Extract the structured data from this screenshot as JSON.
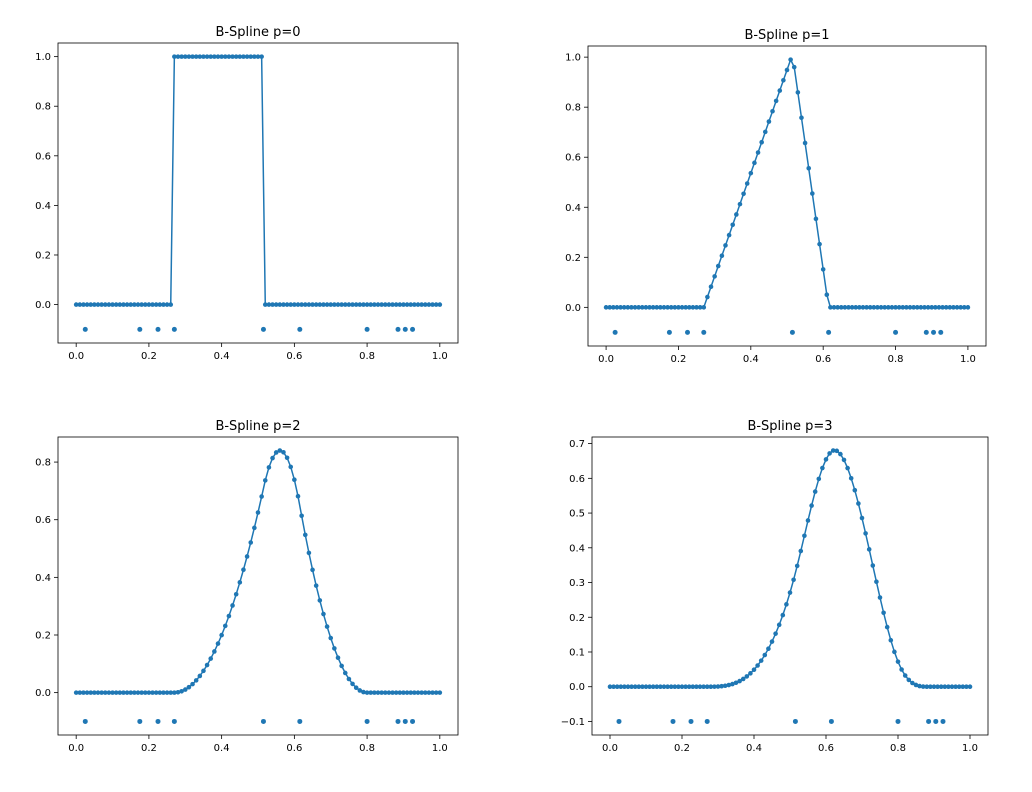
{
  "colors": {
    "series": "#1f77b4",
    "axes": "#000000",
    "background": "#ffffff"
  },
  "knots": [
    0.025,
    0.175,
    0.225,
    0.27,
    0.515,
    0.615,
    0.8,
    0.885,
    0.905,
    0.925
  ],
  "chart_data": [
    {
      "type": "line",
      "title": "B-Spline p=0",
      "degree": 0,
      "xlabel": "",
      "ylabel": "",
      "xlim": [
        0,
        1
      ],
      "ylim": [
        -0.1,
        1.0
      ],
      "xticks": [
        0.0,
        0.2,
        0.4,
        0.6,
        0.8,
        1.0
      ],
      "xtick_labels": [
        "0.0",
        "0.2",
        "0.4",
        "0.6",
        "0.8",
        "1.0"
      ],
      "yticks": [
        0.0,
        0.2,
        0.4,
        0.6,
        0.8,
        1.0
      ],
      "ytick_labels": [
        "0.0",
        "0.2",
        "0.4",
        "0.6",
        "0.8",
        "1.0"
      ],
      "knot_y": -0.1,
      "grid": false,
      "legend": "none"
    },
    {
      "type": "line",
      "title": "B-Spline p=1",
      "degree": 1,
      "xlabel": "",
      "ylabel": "",
      "xlim": [
        0,
        1
      ],
      "ylim": [
        -0.1,
        0.99
      ],
      "xticks": [
        0.0,
        0.2,
        0.4,
        0.6,
        0.8,
        1.0
      ],
      "xtick_labels": [
        "0.0",
        "0.2",
        "0.4",
        "0.6",
        "0.8",
        "1.0"
      ],
      "yticks": [
        0.0,
        0.2,
        0.4,
        0.6,
        0.8,
        1.0
      ],
      "ytick_labels": [
        "0.0",
        "0.2",
        "0.4",
        "0.6",
        "0.8",
        "1.0"
      ],
      "knot_y": -0.1,
      "peak": 0.99,
      "grid": false,
      "legend": "none"
    },
    {
      "type": "line",
      "title": "B-Spline p=2",
      "degree": 2,
      "xlabel": "",
      "ylabel": "",
      "xlim": [
        0,
        1
      ],
      "ylim": [
        -0.1,
        0.84
      ],
      "xticks": [
        0.0,
        0.2,
        0.4,
        0.6,
        0.8,
        1.0
      ],
      "xtick_labels": [
        "0.0",
        "0.2",
        "0.4",
        "0.6",
        "0.8",
        "1.0"
      ],
      "yticks": [
        0.0,
        0.2,
        0.4,
        0.6,
        0.8
      ],
      "ytick_labels": [
        "0.0",
        "0.2",
        "0.4",
        "0.6",
        "0.8"
      ],
      "knot_y": -0.1,
      "peak": 0.84,
      "grid": false,
      "legend": "none"
    },
    {
      "type": "line",
      "title": "B-Spline p=3",
      "degree": 3,
      "xlabel": "",
      "ylabel": "",
      "xlim": [
        0,
        1
      ],
      "ylim": [
        -0.1,
        0.68
      ],
      "xticks": [
        0.0,
        0.2,
        0.4,
        0.6,
        0.8,
        1.0
      ],
      "xtick_labels": [
        "0.0",
        "0.2",
        "0.4",
        "0.6",
        "0.8",
        "1.0"
      ],
      "yticks": [
        -0.1,
        0.0,
        0.1,
        0.2,
        0.3,
        0.4,
        0.5,
        0.6,
        0.7
      ],
      "ytick_labels": [
        "−0.1",
        "0.0",
        "0.1",
        "0.2",
        "0.3",
        "0.4",
        "0.5",
        "0.6",
        "0.7"
      ],
      "knot_y": -0.1,
      "peak": 0.68,
      "grid": false,
      "legend": "none"
    }
  ]
}
